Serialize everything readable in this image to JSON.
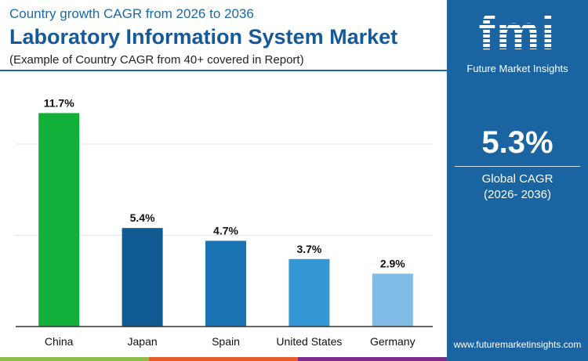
{
  "header": {
    "kicker": "Country growth CAGR from 2026 to 2036",
    "title": "Laboratory Information System Market",
    "subtitle": "(Example of Country CAGR from 40+ covered in Report)"
  },
  "panel": {
    "logo_text": "fmi",
    "brand": "Future Market Insights",
    "global_value": "5.3%",
    "global_label": "Global CAGR",
    "global_period": "(2026- 2036)",
    "url": "www.futuremarketinsights.com",
    "background": "#1a64a2"
  },
  "chart_data": {
    "type": "bar",
    "categories": [
      "China",
      "Japan",
      "Spain",
      "United States",
      "Germany"
    ],
    "values": [
      11.7,
      5.4,
      4.7,
      3.7,
      2.9
    ],
    "labels": [
      "11.7%",
      "5.4%",
      "4.7%",
      "3.7%",
      "2.9%"
    ],
    "colors": [
      "#12b03a",
      "#0f5a91",
      "#1a73b2",
      "#3497d6",
      "#7fbde6"
    ],
    "ylim": [
      0,
      12.5
    ],
    "grid": true,
    "gridlines": [
      5,
      10
    ]
  }
}
